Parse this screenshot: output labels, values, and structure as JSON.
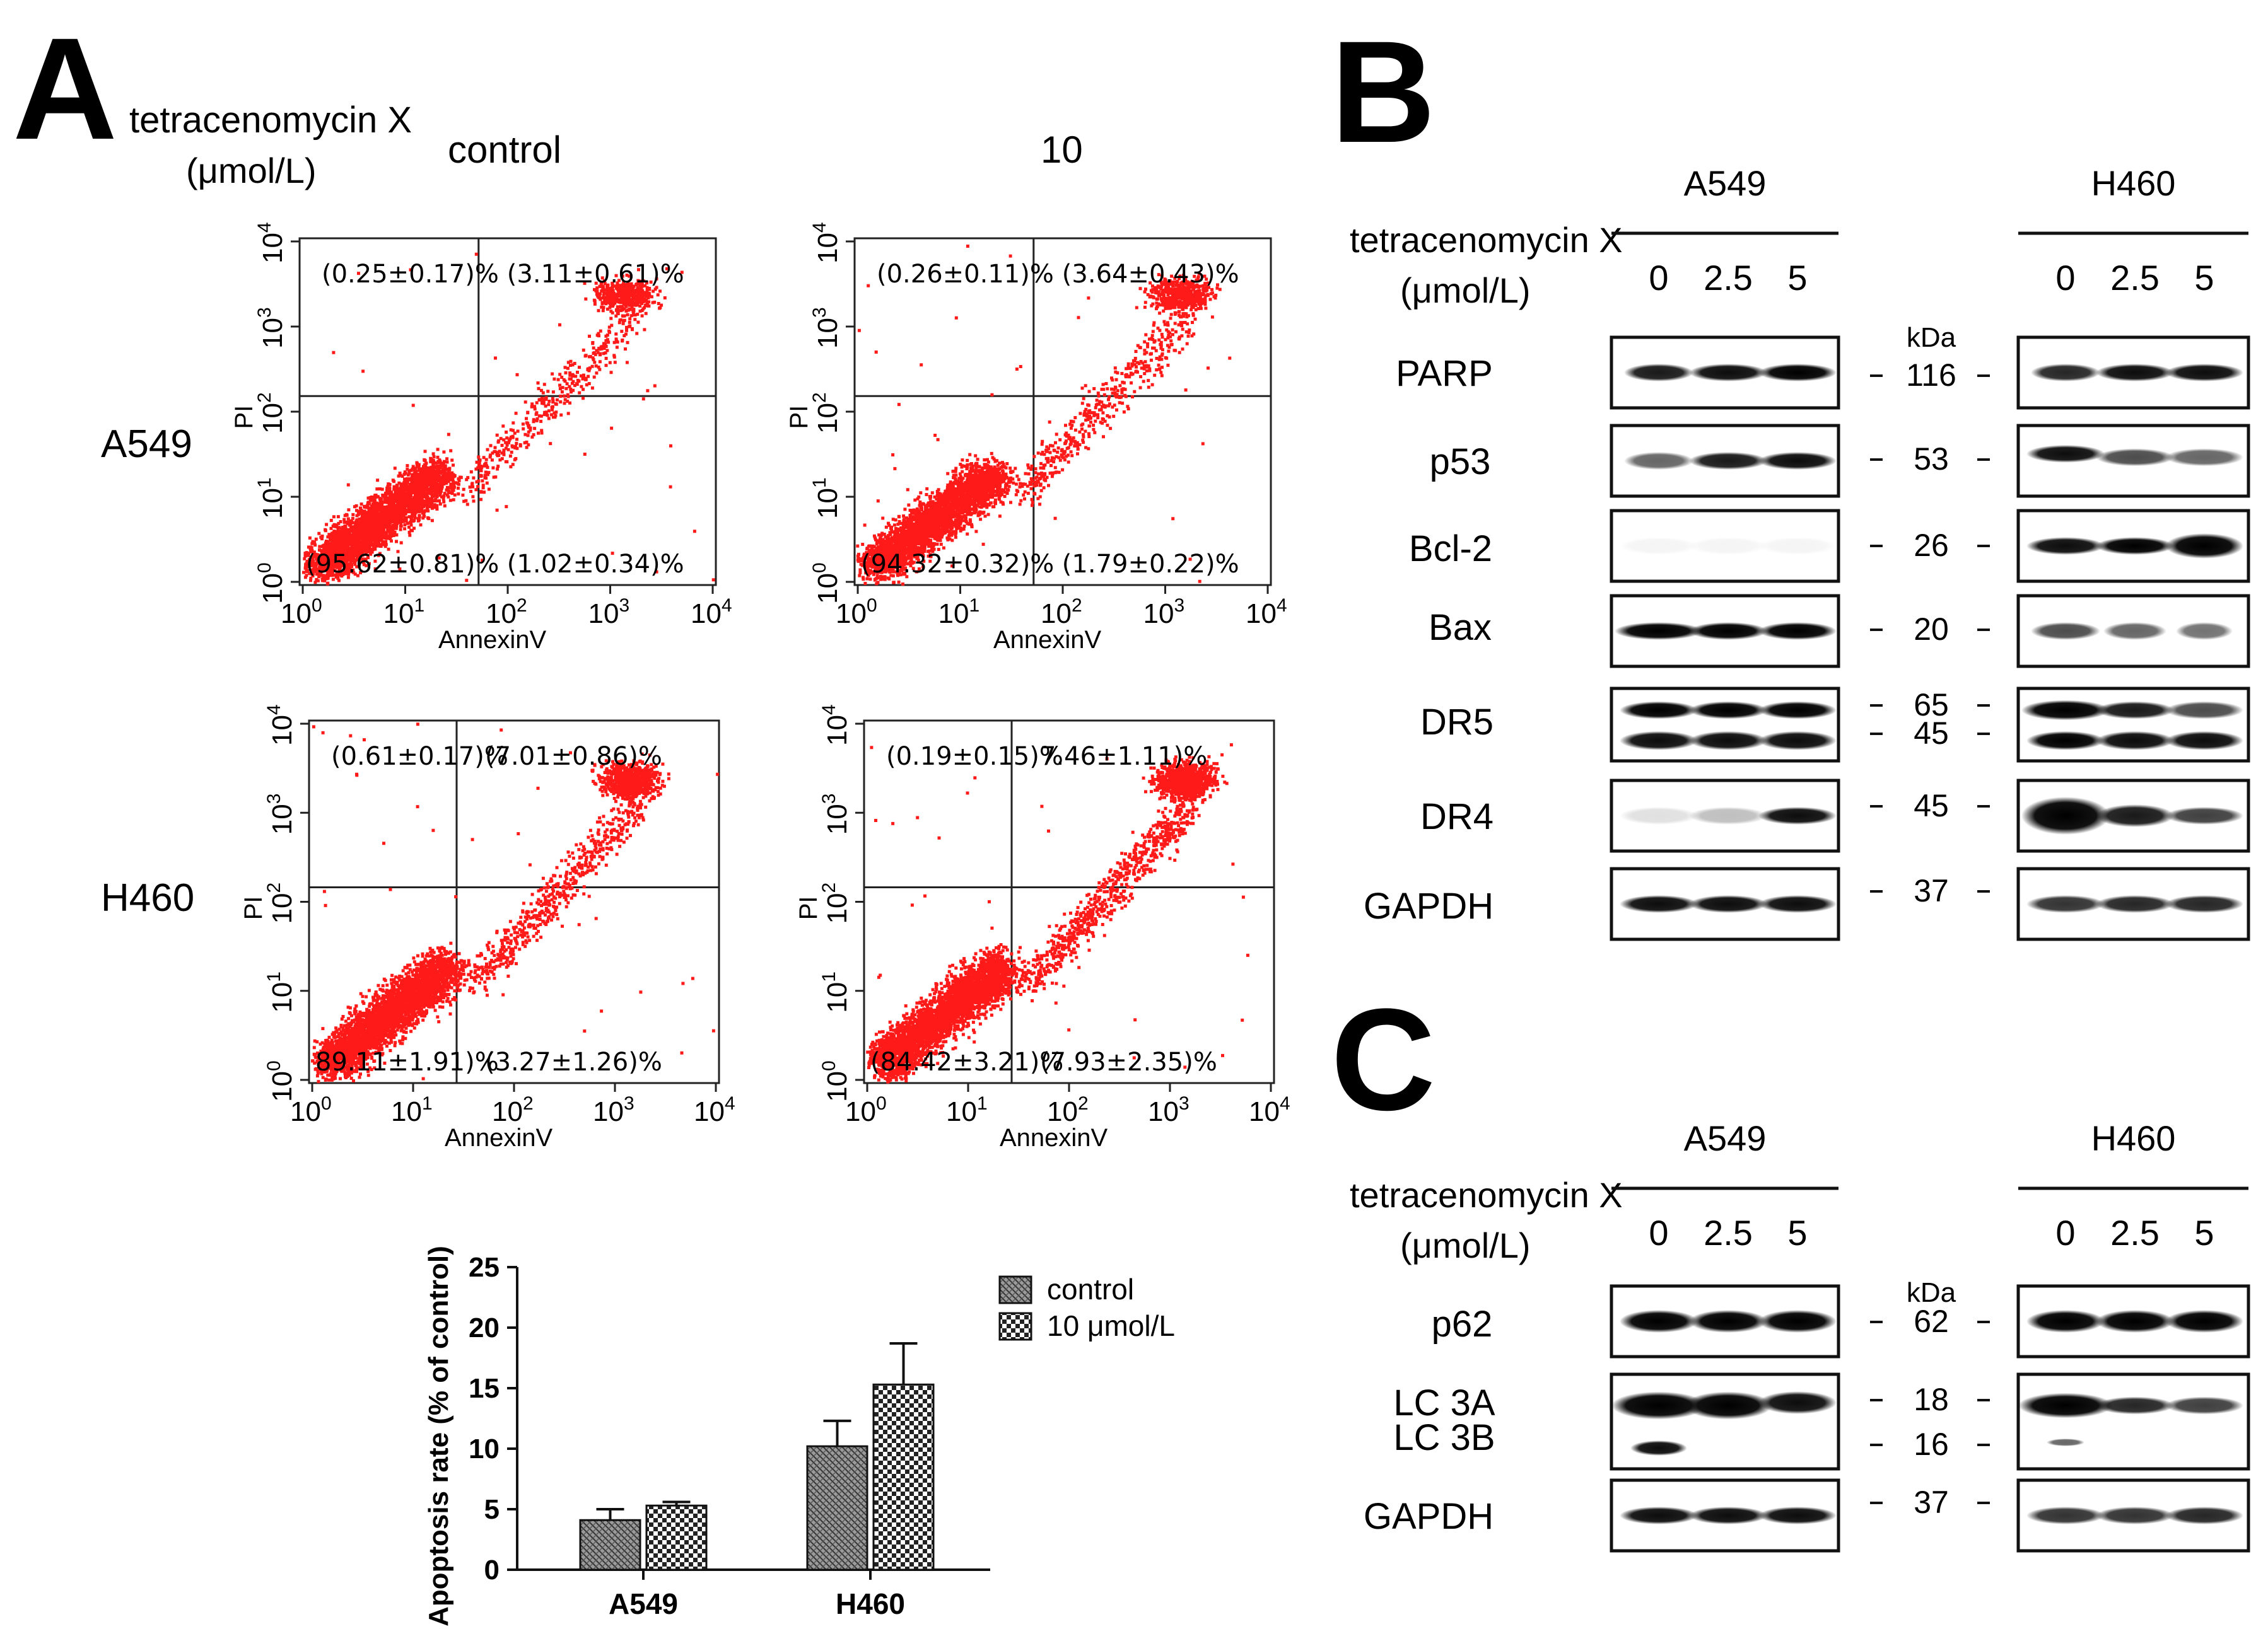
{
  "panel_a": {
    "letter": "A",
    "treatment_label": "tetracenomycin X",
    "unit_label": "(μmol/L)",
    "col_labels": [
      "control",
      "10"
    ],
    "row_labels": [
      "A549",
      "H460"
    ],
    "x_axis_label": "AnnexinV",
    "y_axis_label": "PI",
    "tick_labels": [
      "10",
      "10",
      "10",
      "10",
      "10"
    ],
    "tick_exponents": [
      "0",
      "1",
      "2",
      "3",
      "4"
    ],
    "quadrants": {
      "a549_control": {
        "ul": "(0.25±0.17)%",
        "ur": "(3.11±0.61)%",
        "ll": "(95.62±0.81)%",
        "lr": "(1.02±0.34)%"
      },
      "a549_10": {
        "ul": "(0.26±0.11)%",
        "ur": "(3.64±0.43)%",
        "ll": "(94.32±0.32)%",
        "lr": "(1.79±0.22)%"
      },
      "h460_control": {
        "ul": "(0.61±0.17)%",
        "ur": "(7.01±0.86)%",
        "ll": "89.11±1.91)%",
        "lr": "(3.27±1.26)%"
      },
      "h460_10": {
        "ul": "(0.19±0.15)%",
        "ur": "7.46±1.11)%",
        "ll": "(84.42±3.21)%",
        "lr": "(7.93±2.35)%"
      }
    }
  },
  "chart_data": {
    "type": "bar",
    "categories": [
      "A549",
      "H460"
    ],
    "series": [
      {
        "name": "control",
        "values": [
          4.1,
          10.2
        ],
        "errors": [
          0.9,
          2.1
        ]
      },
      {
        "name": "10 μmol/L",
        "values": [
          5.3,
          15.3
        ],
        "errors": [
          0.3,
          3.4
        ]
      }
    ],
    "ylabel": "Apoptosis rate (% of control)",
    "ylim": [
      0,
      25
    ],
    "yticks": [
      "0",
      "5",
      "10",
      "15",
      "20",
      "25"
    ],
    "legend_position": "top-right"
  },
  "panel_b": {
    "letter": "B",
    "treatment_label": "tetracenomycin X",
    "unit_label": "(μmol/L)",
    "cell_lines": [
      "A549",
      "H460"
    ],
    "doses": [
      "0",
      "2.5",
      "5"
    ],
    "kda_label": "kDa",
    "proteins": [
      "PARP",
      "p53",
      "Bcl-2",
      "Bax",
      "DR5",
      "DR4",
      "GAPDH"
    ],
    "markers": [
      "116",
      "53",
      "26",
      "20",
      "65",
      "45",
      "45",
      "37"
    ]
  },
  "panel_c": {
    "letter": "C",
    "treatment_label": "tetracenomycin X",
    "unit_label": "(μmol/L)",
    "cell_lines": [
      "A549",
      "H460"
    ],
    "doses": [
      "0",
      "2.5",
      "5"
    ],
    "kda_label": "kDa",
    "proteins": [
      "p62",
      "LC 3A",
      "LC 3B",
      "GAPDH"
    ],
    "markers": [
      "62",
      "18",
      "16",
      "37"
    ]
  }
}
